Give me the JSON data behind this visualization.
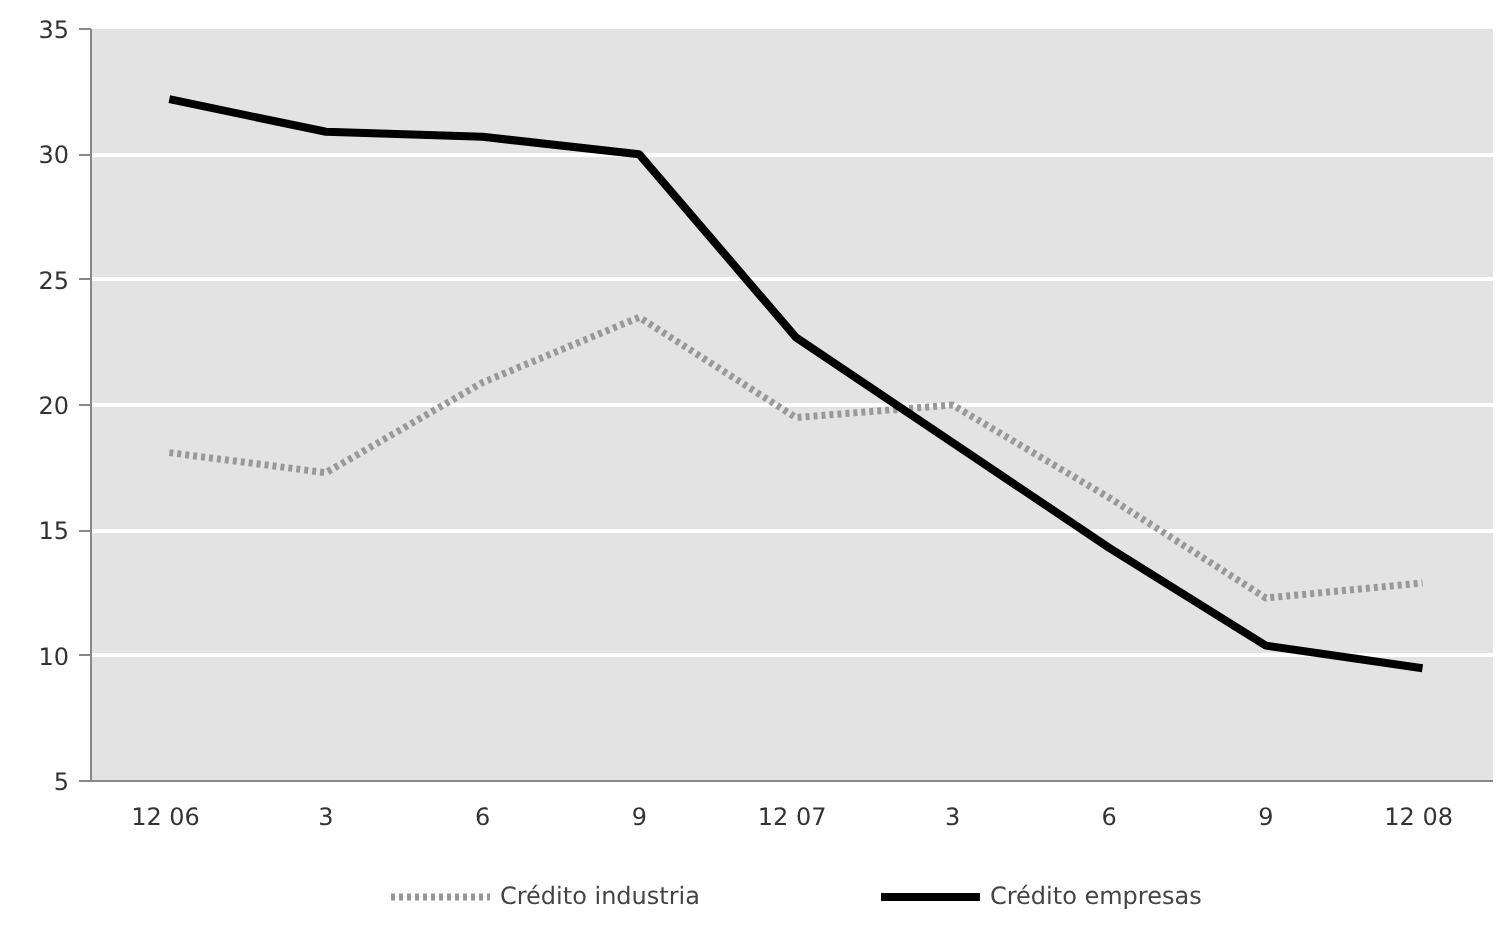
{
  "chart_data": {
    "type": "line",
    "categories": [
      "12  06",
      "3",
      "6",
      "9",
      "12  07",
      "3",
      "6",
      "9",
      "12  08"
    ],
    "series": [
      {
        "name": "Crédito industria",
        "color": "#999999",
        "line_style": "dotted",
        "values": [
          18.1,
          17.3,
          20.9,
          23.5,
          19.5,
          20.0,
          16.3,
          12.3,
          12.9
        ]
      },
      {
        "name": "Crédito empresas",
        "color": "#000000",
        "line_style": "solid",
        "values": [
          32.2,
          30.9,
          30.7,
          30.0,
          22.7,
          18.5,
          14.3,
          10.4,
          9.5
        ]
      }
    ],
    "ylim": [
      5,
      35
    ],
    "yticks": [
      5,
      10,
      15,
      20,
      25,
      30,
      35
    ],
    "grid": "y",
    "legend": "bottom",
    "marker": "none"
  }
}
